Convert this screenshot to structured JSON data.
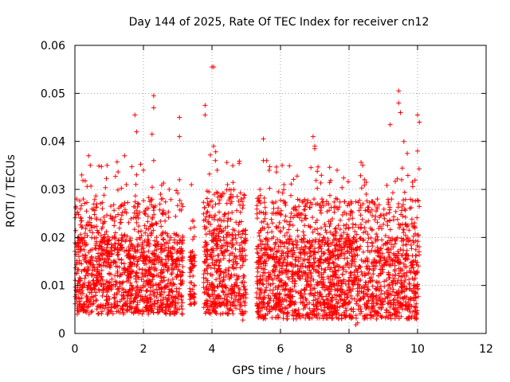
{
  "chart_data": {
    "type": "scatter",
    "title": "Day 144 of 2025, Rate Of TEC Index for receiver cn12",
    "xlabel": "GPS time / hours",
    "ylabel": "ROTI / TECUs",
    "xlim": [
      0,
      12
    ],
    "ylim": [
      0,
      0.06
    ],
    "x_ticks": [
      0,
      2,
      4,
      6,
      8,
      10,
      12
    ],
    "y_ticks": [
      0,
      0.01,
      0.02,
      0.03,
      0.04,
      0.05,
      0.06
    ],
    "x_tick_labels": [
      "0",
      "2",
      "4",
      "6",
      "8",
      "10",
      "12"
    ],
    "y_tick_labels": [
      "0",
      "0.01",
      "0.02",
      "0.03",
      "0.04",
      "0.05",
      "0.06"
    ],
    "grid": true,
    "marker": "plus",
    "marker_color": "#ff0000",
    "note": "Dense scatter of ROTI samples; representative reconstruction of the visible distribution.",
    "series": [
      {
        "name": "ROTI",
        "segments": [
          {
            "x_start": 0.0,
            "x_end": 3.15,
            "baseline_low": 0.004,
            "baseline_high": 0.02
          },
          {
            "x_start": 3.35,
            "x_end": 3.5,
            "baseline_low": 0.006,
            "baseline_high": 0.017
          },
          {
            "x_start": 3.75,
            "x_end": 5.0,
            "baseline_low": 0.004,
            "baseline_high": 0.022
          },
          {
            "x_start": 5.3,
            "x_end": 10.05,
            "baseline_low": 0.003,
            "baseline_high": 0.02
          }
        ],
        "peaks": [
          {
            "x": 0.05,
            "y": 0.028
          },
          {
            "x": 0.2,
            "y": 0.033
          },
          {
            "x": 0.4,
            "y": 0.037
          },
          {
            "x": 0.45,
            "y": 0.035
          },
          {
            "x": 0.8,
            "y": 0.026
          },
          {
            "x": 1.05,
            "y": 0.024
          },
          {
            "x": 1.45,
            "y": 0.037
          },
          {
            "x": 1.5,
            "y": 0.031
          },
          {
            "x": 1.75,
            "y": 0.0455
          },
          {
            "x": 1.8,
            "y": 0.042
          },
          {
            "x": 2.0,
            "y": 0.034
          },
          {
            "x": 2.3,
            "y": 0.0495
          },
          {
            "x": 2.3,
            "y": 0.047
          },
          {
            "x": 2.25,
            "y": 0.0415
          },
          {
            "x": 2.3,
            "y": 0.036
          },
          {
            "x": 2.5,
            "y": 0.029
          },
          {
            "x": 2.75,
            "y": 0.03
          },
          {
            "x": 3.05,
            "y": 0.045
          },
          {
            "x": 3.05,
            "y": 0.041
          },
          {
            "x": 3.05,
            "y": 0.032
          },
          {
            "x": 3.4,
            "y": 0.031
          },
          {
            "x": 3.8,
            "y": 0.0475
          },
          {
            "x": 3.8,
            "y": 0.0455
          },
          {
            "x": 4.0,
            "y": 0.0555
          },
          {
            "x": 4.05,
            "y": 0.0555
          },
          {
            "x": 4.05,
            "y": 0.039
          },
          {
            "x": 4.1,
            "y": 0.036
          },
          {
            "x": 4.15,
            "y": 0.034
          },
          {
            "x": 4.45,
            "y": 0.031
          },
          {
            "x": 4.85,
            "y": 0.028
          },
          {
            "x": 5.5,
            "y": 0.0405
          },
          {
            "x": 5.5,
            "y": 0.036
          },
          {
            "x": 5.4,
            "y": 0.03
          },
          {
            "x": 6.05,
            "y": 0.035
          },
          {
            "x": 6.1,
            "y": 0.031
          },
          {
            "x": 6.95,
            "y": 0.041
          },
          {
            "x": 7.0,
            "y": 0.039
          },
          {
            "x": 7.0,
            "y": 0.0385
          },
          {
            "x": 7.35,
            "y": 0.027
          },
          {
            "x": 7.65,
            "y": 0.034
          },
          {
            "x": 8.1,
            "y": 0.024
          },
          {
            "x": 8.4,
            "y": 0.035
          },
          {
            "x": 8.45,
            "y": 0.032
          },
          {
            "x": 8.5,
            "y": 0.029
          },
          {
            "x": 9.2,
            "y": 0.0435
          },
          {
            "x": 9.45,
            "y": 0.0505
          },
          {
            "x": 9.45,
            "y": 0.048
          },
          {
            "x": 9.5,
            "y": 0.046
          },
          {
            "x": 9.6,
            "y": 0.04
          },
          {
            "x": 9.7,
            "y": 0.0375
          },
          {
            "x": 9.85,
            "y": 0.0315
          },
          {
            "x": 10.0,
            "y": 0.0455
          },
          {
            "x": 10.05,
            "y": 0.044
          },
          {
            "x": 10.0,
            "y": 0.038
          },
          {
            "x": 8.2,
            "y": 0.0018
          },
          {
            "x": 8.25,
            "y": 0.0022
          },
          {
            "x": 4.9,
            "y": 0.0028
          }
        ]
      }
    ]
  }
}
